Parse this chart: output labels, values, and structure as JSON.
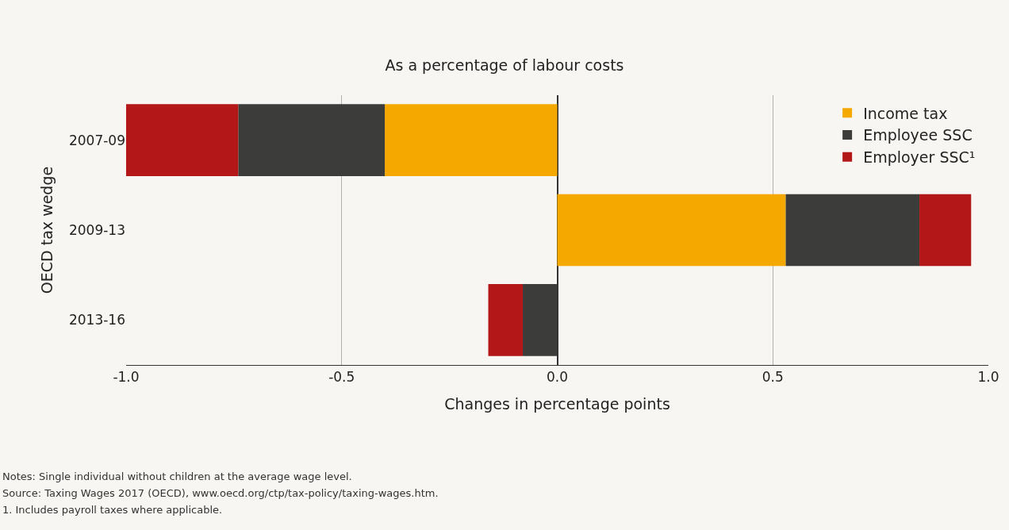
{
  "chart_data": {
    "type": "bar",
    "orientation": "horizontal",
    "stacked": true,
    "title": "As a percentage of labour costs",
    "xlabel": "Changes in percentage points",
    "ylabel": "OECD tax wedge",
    "categories": [
      "2007-09",
      "2009-13",
      "2013-16"
    ],
    "series": [
      {
        "name": "Income tax",
        "color": "#f5a800",
        "values": [
          -0.4,
          0.53,
          0.0
        ]
      },
      {
        "name": "Employee SSC",
        "color": "#3c3c3b",
        "values": [
          -0.34,
          0.31,
          -0.08
        ]
      },
      {
        "name": "Employer SSC¹",
        "color": "#b41718",
        "values": [
          -0.26,
          0.12,
          -0.08
        ]
      }
    ],
    "xlim": [
      -1.0,
      1.0
    ],
    "xticks": [
      {
        "value": -1.0,
        "label": "-1.0"
      },
      -0.5,
      {
        "value": 0.0,
        "label": "0.0"
      },
      0.5,
      {
        "value": 1.0,
        "label": "1.0"
      }
    ],
    "grid": "x",
    "legend": "top right",
    "annotations": [
      "Notes: Single individual without children at the average wage level.",
      "Source: Taxing Wages 2017 (OECD), www.oecd.org/ctp/tax-policy/taxing-wages.htm.",
      "1. Includes payroll taxes where applicable."
    ]
  }
}
